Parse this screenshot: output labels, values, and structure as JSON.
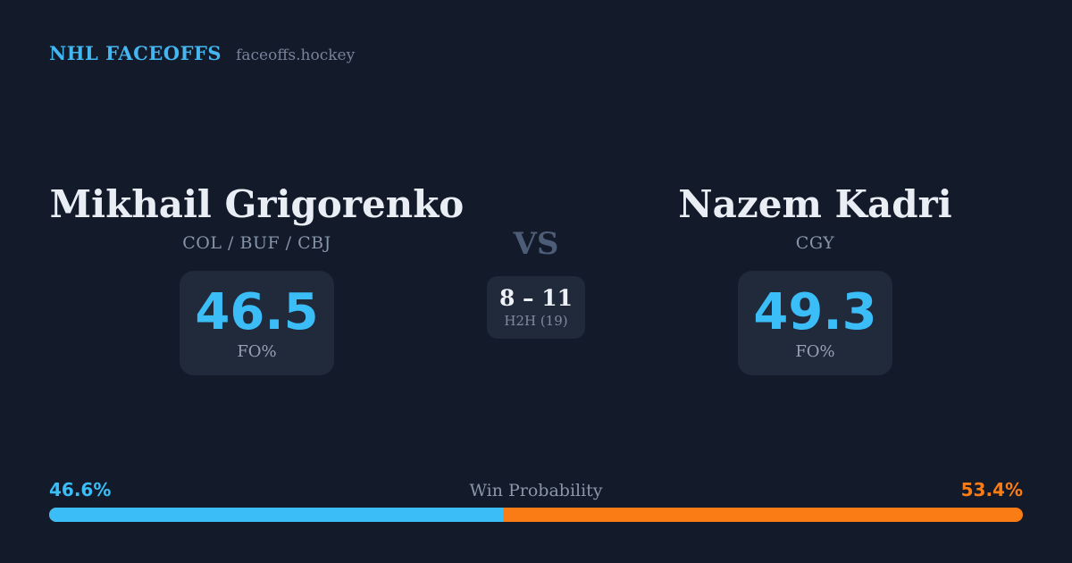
{
  "colors": {
    "background": "#131a2a",
    "card": "#202a3a",
    "accent_blue": "#3bbdf7",
    "accent_orange": "#f97c15",
    "brand_blue": "#45b7f0",
    "text_primary": "#e9edf4",
    "text_muted": "#8695a9",
    "vs_color": "#4d5c77"
  },
  "header": {
    "brand": "NHL FACEOFFS",
    "site": "faceoffs.hockey"
  },
  "matchup": {
    "left_player": {
      "name": "Mikhail Grigorenko",
      "teams": "COL / BUF / CBJ",
      "stat_value": "46.5",
      "stat_label": "FO%"
    },
    "vs_label": "VS",
    "h2h": {
      "score": "8 – 11",
      "label": "H2H (19)"
    },
    "right_player": {
      "name": "Nazem Kadri",
      "teams": "CGY",
      "stat_value": "49.3",
      "stat_label": "FO%"
    }
  },
  "win_probability": {
    "label": "Win Probability",
    "left_label": "46.6%",
    "right_label": "53.4%",
    "left_value": 46.6,
    "right_value": 53.4
  }
}
